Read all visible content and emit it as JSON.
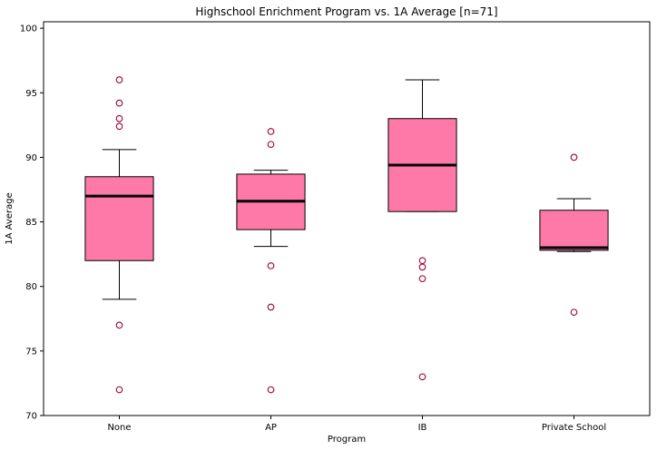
{
  "chart_data": {
    "type": "box",
    "title": "Highschool Enrichment Program vs. 1A Average [n=71]",
    "xlabel": "Program",
    "ylabel": "1A Average",
    "ylim": [
      70,
      100.5
    ],
    "yticks": [
      "70",
      "75",
      "80",
      "85",
      "90",
      "95",
      "100"
    ],
    "categories": [
      "None",
      "AP",
      "IB",
      "Private School"
    ],
    "boxes": [
      {
        "category": "None",
        "whisker_low": 79.0,
        "q1": 82.0,
        "median": 87.0,
        "q3": 88.5,
        "whisker_high": 90.6,
        "outliers": [
          96.0,
          94.2,
          93.0,
          92.4,
          77.0,
          72.0
        ]
      },
      {
        "category": "AP",
        "whisker_low": 83.1,
        "q1": 84.4,
        "median": 86.6,
        "q3": 88.7,
        "whisker_high": 89.0,
        "outliers": [
          92.0,
          91.0,
          81.6,
          78.4,
          72.0
        ]
      },
      {
        "category": "IB",
        "whisker_low": 85.8,
        "q1": 85.8,
        "median": 89.4,
        "q3": 93.0,
        "whisker_high": 96.0,
        "outliers": [
          82.0,
          81.5,
          80.6,
          73.0
        ]
      },
      {
        "category": "Private School",
        "whisker_low": 82.7,
        "q1": 82.8,
        "median": 83.0,
        "q3": 85.9,
        "whisker_high": 86.8,
        "outliers": [
          90.0,
          78.0
        ]
      }
    ],
    "box_color": "#ff79a8",
    "median_color": "#000000",
    "outlier_color": "#a0003c",
    "grid": false,
    "legend": "none"
  }
}
